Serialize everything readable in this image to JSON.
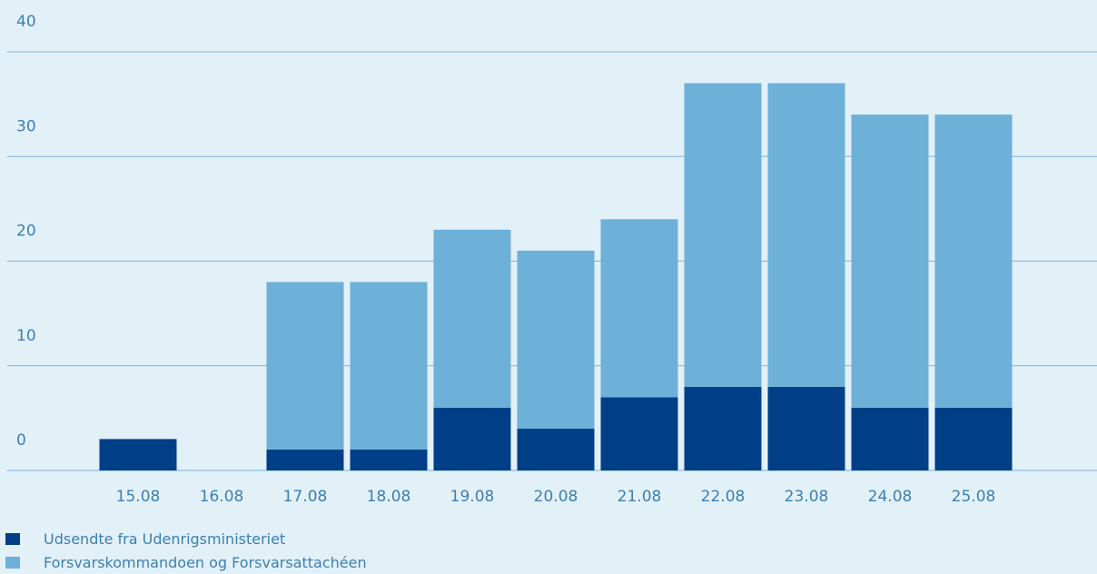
{
  "colors": {
    "background": "#e2f0f8",
    "gridline": "#7fb4d8",
    "text": "#3d7fb0",
    "series_dark": "#003f87",
    "series_light": "#6db1d8"
  },
  "legend": [
    {
      "label": "Udsendte fra Udenrigsministeriet",
      "color": "#003f87"
    },
    {
      "label": "Forsvarskommandoen og Forsvarsattachéen",
      "color": "#6db1d8"
    }
  ],
  "chart_data": {
    "type": "bar",
    "stacked": true,
    "categories": [
      "15.08",
      "16.08",
      "17.08",
      "18.08",
      "19.08",
      "20.08",
      "21.08",
      "22.08",
      "23.08",
      "24.08",
      "25.08"
    ],
    "series": [
      {
        "name": "Udsendte fra Udenrigsministeriet",
        "color": "#003f87",
        "values": [
          3,
          0,
          2,
          2,
          6,
          4,
          7,
          8,
          8,
          6,
          6
        ]
      },
      {
        "name": "Forsvarskommandoen og Forsvarsattachéen",
        "color": "#6db1d8",
        "values": [
          0,
          0,
          16,
          16,
          17,
          17,
          17,
          29,
          29,
          28,
          28
        ]
      }
    ],
    "y_ticks": [
      "0",
      "10",
      "20",
      "30",
      "40"
    ],
    "ylim": [
      0,
      40
    ],
    "grid": true,
    "legend_position": "bottom-left",
    "title": "",
    "xlabel": "",
    "ylabel": ""
  }
}
